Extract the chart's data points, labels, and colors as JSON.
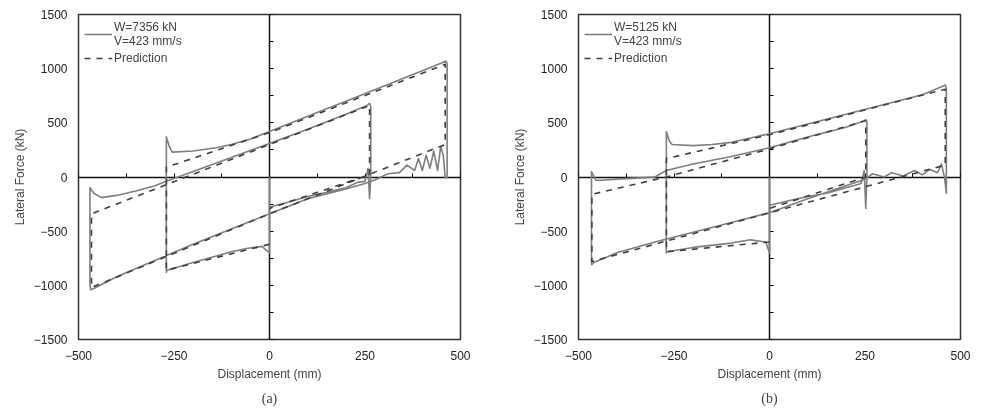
{
  "chart_data": [
    {
      "type": "line",
      "title": "(a)",
      "xlabel": "Displacement (mm)",
      "ylabel": "Lateral Force (kN)",
      "xlim": [
        -500,
        500
      ],
      "ylim": [
        -1500,
        1500
      ],
      "xticks": [
        -500,
        -250,
        0,
        250,
        500
      ],
      "yticks": [
        -1500,
        -1000,
        -500,
        0,
        500,
        1000,
        1500
      ],
      "legend": "top left",
      "series": [
        {
          "name": "W=7356 kN\nV=423 mm/s",
          "color": "#7f7f7f",
          "line_style": "solid",
          "x": [
            0,
            0,
            -20,
            -60,
            -100,
            -200,
            -268,
            -270,
            -270,
            -262,
            -255,
            -200,
            -140,
            -100,
            -50,
            0,
            100,
            200,
            300,
            400,
            455,
            462,
            465,
            465,
            460,
            455,
            448,
            440,
            430,
            420,
            410,
            400,
            390,
            380,
            360,
            340,
            310,
            280,
            250,
            200,
            100,
            0,
            -100,
            -200,
            -300,
            -400,
            -460,
            -468,
            -470,
            -470,
            -460,
            -440,
            -400,
            -350,
            -300,
            -270,
            -200,
            -100,
            0,
            100,
            200,
            255,
            262,
            265,
            265,
            262,
            258,
            250,
            230,
            200,
            150,
            100,
            50,
            0,
            0
          ],
          "values": [
            0,
            -700,
            -640,
            -660,
            -690,
            -790,
            -860,
            -880,
            370,
            280,
            230,
            240,
            270,
            300,
            350,
            420,
            560,
            700,
            840,
            980,
            1060,
            1070,
            1050,
            0,
            -10,
            200,
            280,
            60,
            240,
            80,
            200,
            60,
            170,
            60,
            110,
            40,
            30,
            -20,
            -60,
            -110,
            -200,
            -340,
            -480,
            -620,
            -770,
            -920,
            -1030,
            -1040,
            -1000,
            -100,
            -150,
            -190,
            -170,
            -130,
            -80,
            -40,
            50,
            180,
            310,
            440,
            580,
            660,
            680,
            650,
            0,
            -200,
            80,
            -40,
            -50,
            -100,
            -140,
            -180,
            -230,
            -280,
            -300
          ]
        },
        {
          "name": "Prediction",
          "color": "#404040",
          "line_style": "dashed",
          "x": [
            0,
            -270,
            -270,
            0,
            460,
            460,
            0,
            -466,
            -466,
            0,
            262,
            262,
            0
          ],
          "values": [
            -620,
            -860,
            90,
            410,
            1040,
            300,
            -340,
            -1020,
            -340,
            300,
            660,
            20,
            -290
          ]
        }
      ]
    },
    {
      "type": "line",
      "title": "(b)",
      "xlabel": "Displacement (mm)",
      "ylabel": "Lateral Force (kN)",
      "xlim": [
        -500,
        500
      ],
      "ylim": [
        -1500,
        1500
      ],
      "xticks": [
        -500,
        -250,
        0,
        250,
        500
      ],
      "yticks": [
        -1500,
        -1000,
        -500,
        0,
        500,
        1000,
        1500
      ],
      "legend": "top left",
      "series": [
        {
          "name": "W=5125 kN\nV=423 mm/s",
          "color": "#7f7f7f",
          "line_style": "solid",
          "x": [
            0,
            0,
            -10,
            -50,
            -100,
            -200,
            -268,
            -270,
            -270,
            -262,
            -255,
            -200,
            -150,
            -100,
            -50,
            0,
            100,
            200,
            300,
            400,
            455,
            460,
            463,
            463,
            458,
            450,
            440,
            420,
            400,
            380,
            350,
            320,
            300,
            270,
            250,
            200,
            100,
            0,
            -100,
            -200,
            -300,
            -400,
            -460,
            -465,
            -466,
            -466,
            -460,
            -455,
            -440,
            -400,
            -350,
            -300,
            -270,
            -200,
            -100,
            0,
            100,
            200,
            248,
            252,
            255,
            255,
            252,
            248,
            240,
            220,
            200,
            150,
            100,
            50,
            0,
            0
          ],
          "values": [
            0,
            -700,
            -600,
            -580,
            -610,
            -650,
            -690,
            -700,
            420,
            330,
            300,
            290,
            300,
            320,
            360,
            400,
            490,
            580,
            670,
            760,
            840,
            850,
            820,
            -150,
            0,
            120,
            40,
            70,
            20,
            60,
            10,
            40,
            0,
            30,
            -20,
            -80,
            -200,
            -330,
            -420,
            -510,
            -600,
            -700,
            -790,
            -810,
            -790,
            50,
            10,
            -30,
            -30,
            -20,
            -10,
            0,
            60,
            120,
            190,
            270,
            370,
            460,
            520,
            530,
            510,
            0,
            -290,
            60,
            -60,
            -80,
            -100,
            -150,
            -180,
            -220,
            -260,
            -280
          ]
        },
        {
          "name": "Prediction",
          "color": "#404040",
          "line_style": "dashed",
          "x": [
            0,
            -270,
            -270,
            0,
            460,
            460,
            0,
            -465,
            -465,
            -270,
            0,
            252,
            252,
            0
          ],
          "values": [
            -600,
            -690,
            170,
            390,
            810,
            110,
            -330,
            -780,
            -160,
            0,
            260,
            520,
            0,
            -290
          ]
        }
      ]
    }
  ]
}
